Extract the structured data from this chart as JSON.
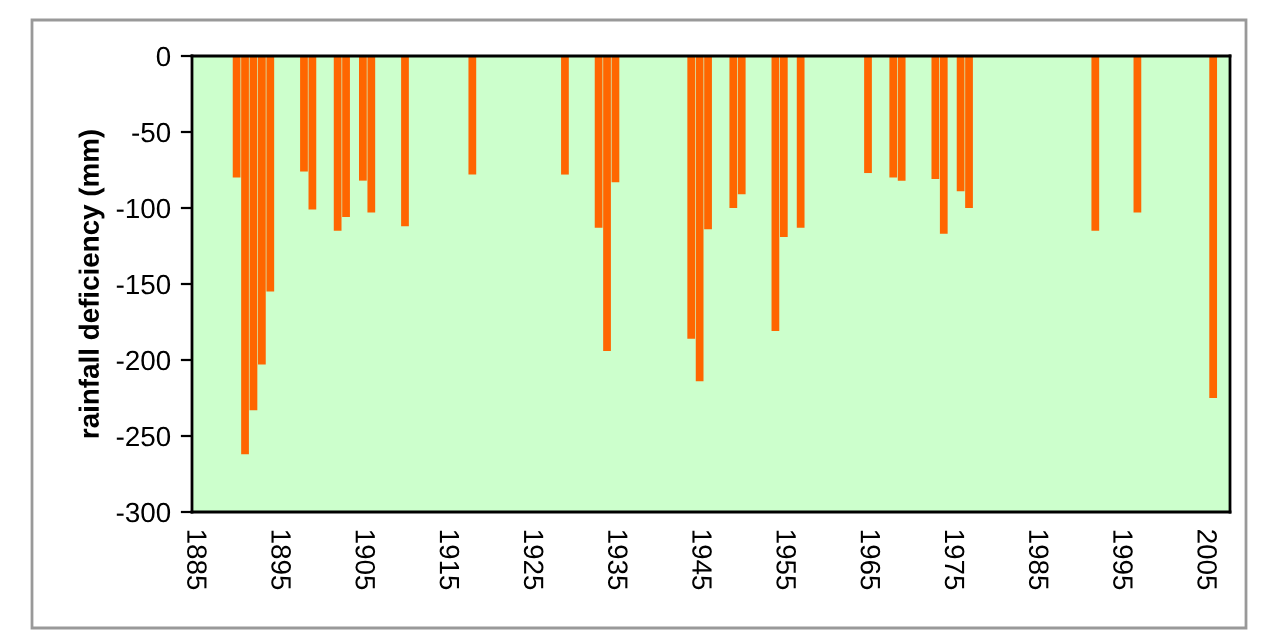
{
  "chart_data": {
    "type": "bar",
    "ylabel": "rainfall deficiency (mm)",
    "x": [
      1890,
      1891,
      1892,
      1893,
      1894,
      1898,
      1899,
      1902,
      1903,
      1905,
      1906,
      1910,
      1918,
      1929,
      1933,
      1934,
      1935,
      1944,
      1945,
      1946,
      1949,
      1950,
      1954,
      1955,
      1957,
      1965,
      1968,
      1969,
      1973,
      1974,
      1976,
      1977,
      1992,
      1997,
      2006
    ],
    "values": [
      -80,
      -262,
      -233,
      -203,
      -155,
      -76,
      -101,
      -115,
      -106,
      -82,
      -103,
      -112,
      -78,
      -78,
      -113,
      -194,
      -83,
      -186,
      -214,
      -114,
      -100,
      -91,
      -181,
      -119,
      -113,
      -77,
      -80,
      -82,
      -81,
      -117,
      -89,
      -100,
      -115,
      -103,
      -225
    ],
    "color": "#ff6600",
    "xlim": [
      1884.7,
      2008
    ],
    "xticks": [
      1885,
      1895,
      1905,
      1915,
      1925,
      1935,
      1945,
      1955,
      1965,
      1975,
      1985,
      1995,
      2005
    ],
    "ylim": [
      -300,
      0
    ],
    "yticks": [
      -300,
      -250,
      -200,
      -150,
      -100,
      -50,
      0
    ],
    "grid": false,
    "legend": false
  }
}
